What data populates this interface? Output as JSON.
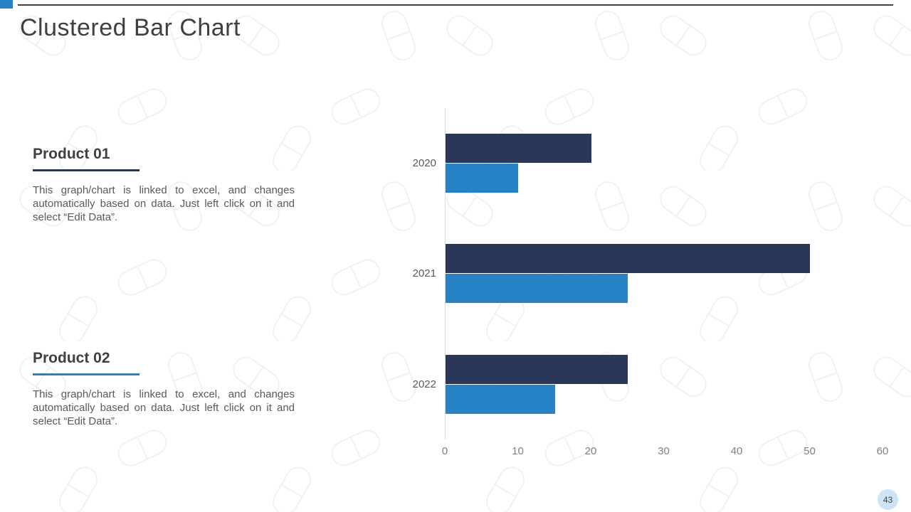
{
  "slide": {
    "title": "Clustered Bar Chart",
    "page_number": "43"
  },
  "products": [
    {
      "name": "Product 01",
      "accent_color": "#2A3759",
      "description": "This graph/chart is linked to excel, and changes automatically based on data. Just left click on it and select “Edit Data”."
    },
    {
      "name": "Product 02",
      "accent_color": "#2783C5",
      "description": "This graph/chart is linked to excel, and changes automatically based on data. Just left click on it and select “Edit Data”."
    }
  ],
  "chart_data": {
    "type": "bar",
    "orientation": "horizontal",
    "categories": [
      "2020",
      "2021",
      "2022"
    ],
    "series": [
      {
        "name": "Product 01",
        "color": "#2A3759",
        "values": [
          20,
          50,
          25
        ]
      },
      {
        "name": "Product 02",
        "color": "#2783C5",
        "values": [
          10,
          25,
          15
        ]
      }
    ],
    "xlim": [
      0,
      60
    ],
    "x_ticks": [
      0,
      10,
      20,
      30,
      40,
      50,
      60
    ],
    "grid": false,
    "legend": "none",
    "title": "",
    "xlabel": "",
    "ylabel": ""
  },
  "icons": {
    "background_pattern": "pill-capsule-outline"
  },
  "colors": {
    "navy": "#2A3759",
    "blue": "#2783C5",
    "title_text": "#3F3F3F",
    "body_text": "#595959",
    "axis_line": "#D9D9D9",
    "tick_text": "#808080",
    "badge_bg": "#CDE4F6",
    "top_rule": "#3F3F3F"
  }
}
